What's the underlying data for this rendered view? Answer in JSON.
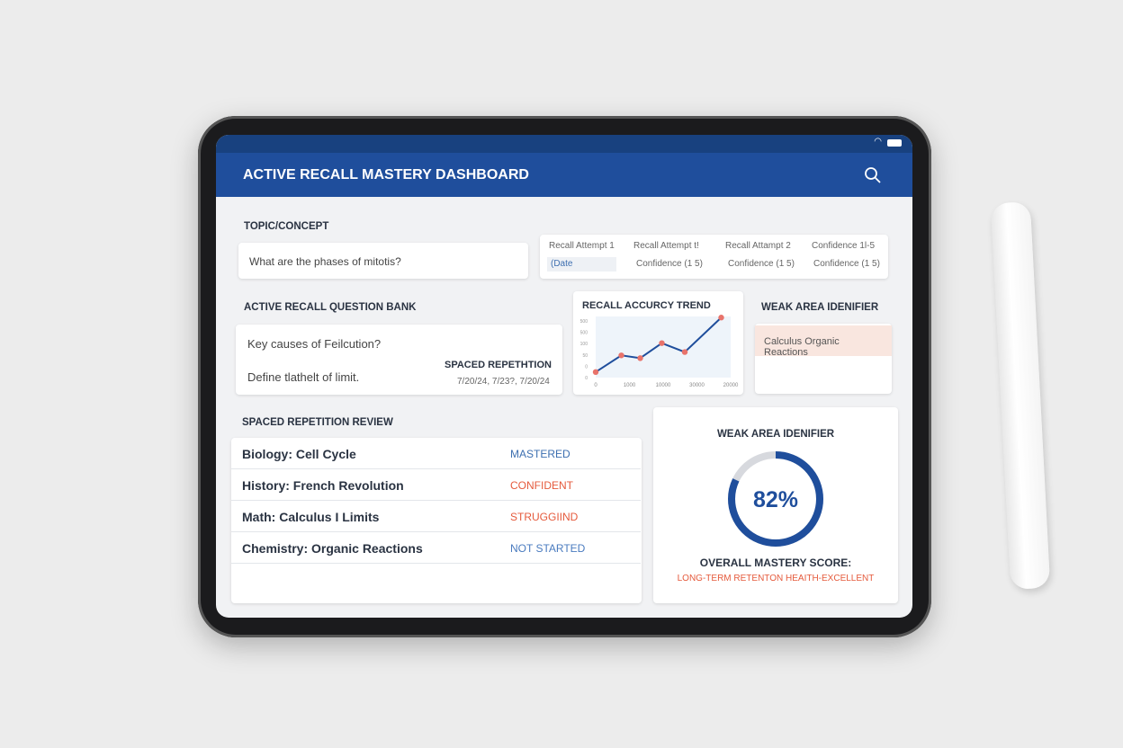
{
  "app": {
    "title": "ACTIVE RECALL MASTERY DASHBOARD",
    "search_icon": "search-icon",
    "accent": "#1f4e9c"
  },
  "topic": {
    "label": "TOPIC/CONCEPT",
    "value": "What are the phases of mitotis?"
  },
  "attempts": {
    "headers": [
      "Recall Attempt 1",
      "Recall Attempt t!",
      "Recall Attampt 2",
      "Confidence 1l-5"
    ],
    "cells": [
      "(Date",
      "Confidence (1 5)",
      "Confidence (1 5)",
      "Confidence (1 5)"
    ]
  },
  "bank": {
    "label": "ACTIVE RECALL QUESTION BANK",
    "questions": [
      "Key causes of Feilcution?",
      "Define tlathelt of limit."
    ],
    "sr_label": "SPACED REPETHTION",
    "sr_dates": "7/20/24, 7/23?, 7/20/24"
  },
  "chart_data": {
    "type": "line",
    "title": "RECALL ACCURCY TREND",
    "y_tick_labels": [
      "0",
      "0",
      "50",
      "100",
      "500",
      "500"
    ],
    "x_tick_labels": [
      "0",
      "1000",
      "10000",
      "30000",
      "20000"
    ],
    "ylim": [
      0,
      5.5
    ],
    "values": [
      0.5,
      2,
      1.75,
      3.1,
      2.3,
      5.4
    ],
    "line_color": "#1f4e9c",
    "point_color": "#e8736b"
  },
  "weak": {
    "label": "WEAK AREA IDENIFIER",
    "item": "Calculus Organic Reactions"
  },
  "review": {
    "label": "SPACED REPETITION REVIEW",
    "rows": [
      {
        "name": "Biology: Cell Cycle",
        "status": "MASTERED",
        "color": "#3d6fb0"
      },
      {
        "name": "History: French Revolution",
        "status": "CONFIDENT",
        "color": "#e55a3c"
      },
      {
        "name": "Math: Calculus I Limits",
        "status": "STRUGGIIND",
        "color": "#e55a3c"
      },
      {
        "name": "Chemistry: Organic Reactions",
        "status": "NOT STARTED",
        "color": "#4a7bbf"
      }
    ]
  },
  "mastery": {
    "label": "WEAK AREA IDENIFIER",
    "percent": 82,
    "percent_text": "82%",
    "score_label": "OVERALL MASTERY SCORE:",
    "health": "LONG-TERM RETENTON HEAITH-EXCELLENT"
  }
}
